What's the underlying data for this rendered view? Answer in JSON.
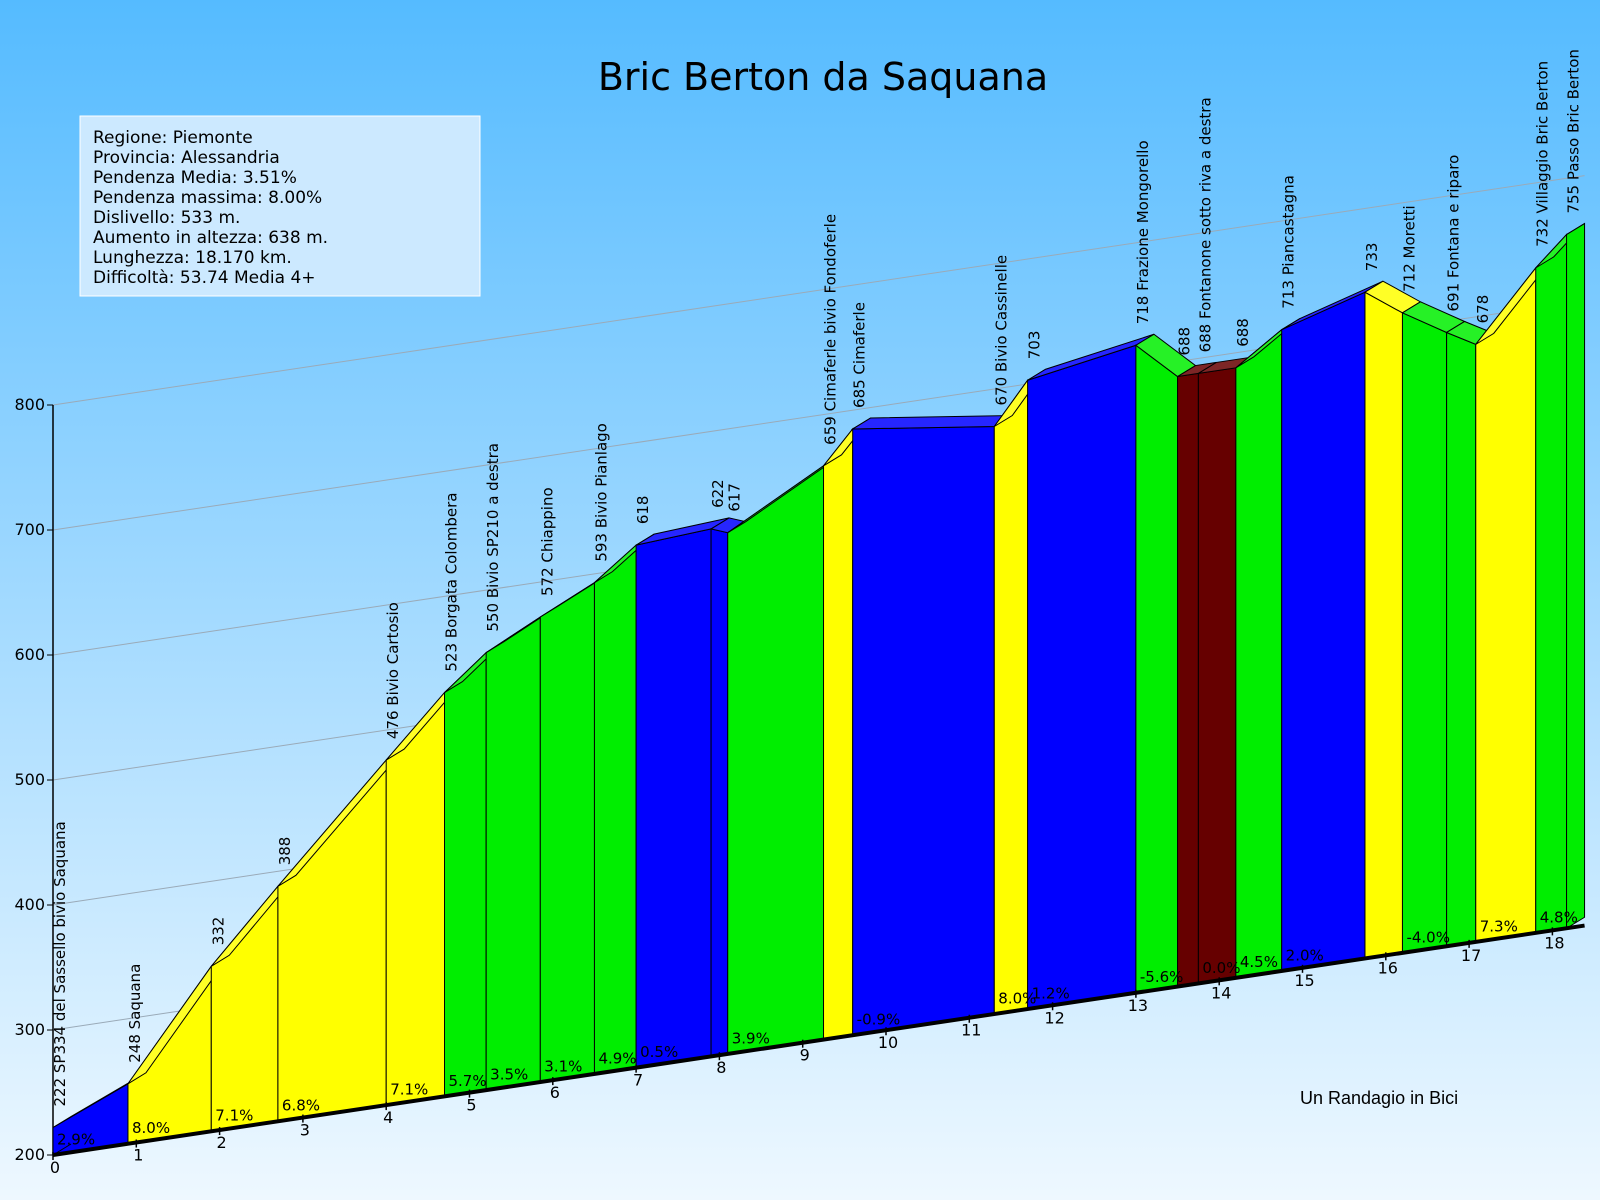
{
  "chart_data": {
    "type": "area",
    "title": "Bric Berton da Saquana",
    "info": [
      "Regione: Piemonte",
      "Provincia: Alessandria",
      "Pendenza Media: 3.51%",
      "Pendenza massima: 8.00%",
      "Dislivello:   533 m.",
      "Aumento in altezza:   638 m.",
      "Lunghezza:  18.170 km.",
      "Difficoltà: 53.74 Media 4+"
    ],
    "credit": "Un Randagio in Bici",
    "y_ticks": [
      "200",
      "300",
      "400",
      "500",
      "600",
      "700",
      "800"
    ],
    "ylim": [
      200,
      800
    ],
    "x_ticks": [
      "0",
      "1",
      "2",
      "3",
      "4",
      "5",
      "6",
      "7",
      "8",
      "9",
      "10",
      "11",
      "12",
      "13",
      "14",
      "15",
      "16",
      "17",
      "18"
    ],
    "xlim": [
      0,
      18.17
    ],
    "colors": {
      "easy": "#0000ff",
      "moderate": "#00ee00",
      "hard": "#ffff00",
      "descent": "#660000",
      "sky_top": "#55bbff",
      "sky_bottom": "#e8f6ff"
    },
    "points": [
      {
        "km": 0.0,
        "alt": 222,
        "label": "222 SP334 del Sassello bivio Saquana"
      },
      {
        "km": 0.9,
        "alt": 248,
        "label": "248 Saquana"
      },
      {
        "km": 1.9,
        "alt": 332,
        "label": "332"
      },
      {
        "km": 2.7,
        "alt": 388,
        "label": "388"
      },
      {
        "km": 4.0,
        "alt": 476,
        "label": "476 Bivio Cartosio"
      },
      {
        "km": 4.7,
        "alt": 523,
        "label": "523 Borgata Colombera"
      },
      {
        "km": 5.2,
        "alt": 550,
        "label": "550 Bivio SP210 a destra"
      },
      {
        "km": 5.85,
        "alt": 572,
        "label": "572 Chiappino"
      },
      {
        "km": 6.5,
        "alt": 593,
        "label": "593 Bivio Pianlago"
      },
      {
        "km": 7.0,
        "alt": 618,
        "label": "618"
      },
      {
        "km": 7.9,
        "alt": 622,
        "label": "622"
      },
      {
        "km": 8.1,
        "alt": 617,
        "label": "617"
      },
      {
        "km": 9.25,
        "alt": 659,
        "label": "659 Cimaferle bivio Fondoferle"
      },
      {
        "km": 9.6,
        "alt": 685,
        "label": "685 Cimaferle"
      },
      {
        "km": 11.3,
        "alt": 670,
        "label": "670 Bivio Cassinelle"
      },
      {
        "km": 11.7,
        "alt": 703,
        "label": "703"
      },
      {
        "km": 13.0,
        "alt": 718,
        "label": "718 Frazione Mongorello"
      },
      {
        "km": 13.5,
        "alt": 688,
        "label": "688"
      },
      {
        "km": 13.75,
        "alt": 688,
        "label": "688 Fontanone sotto riva a destra"
      },
      {
        "km": 14.2,
        "alt": 688,
        "label": "688"
      },
      {
        "km": 14.75,
        "alt": 713,
        "label": "713 Piancastagna"
      },
      {
        "km": 15.75,
        "alt": 733,
        "label": "733"
      },
      {
        "km": 16.2,
        "alt": 712,
        "label": "712 Moretti"
      },
      {
        "km": 16.73,
        "alt": 691,
        "label": "691 Fontana e riparo"
      },
      {
        "km": 17.08,
        "alt": 678,
        "label": "678"
      },
      {
        "km": 17.8,
        "alt": 732,
        "label": "732 Villaggio Bric Berton"
      },
      {
        "km": 18.17,
        "alt": 755,
        "label": "755 Passo Bric Berton"
      }
    ],
    "segments": [
      {
        "grade": "2.9%",
        "color": "easy"
      },
      {
        "grade": "8.0%",
        "color": "hard"
      },
      {
        "grade": "7.1%",
        "color": "hard"
      },
      {
        "grade": "6.8%",
        "color": "hard"
      },
      {
        "grade": "7.1%",
        "color": "hard"
      },
      {
        "grade": "5.7%",
        "color": "moderate"
      },
      {
        "grade": "3.5%",
        "color": "moderate"
      },
      {
        "grade": "3.1%",
        "color": "moderate"
      },
      {
        "grade": "4.9%",
        "color": "moderate"
      },
      {
        "grade": "0.5%",
        "color": "easy"
      },
      {
        "grade": "",
        "color": "easy"
      },
      {
        "grade": "3.9%",
        "color": "moderate"
      },
      {
        "grade": "",
        "color": "hard"
      },
      {
        "grade": "-0.9%",
        "color": "easy"
      },
      {
        "grade": "8.0%",
        "color": "hard"
      },
      {
        "grade": "1.2%",
        "color": "easy"
      },
      {
        "grade": "-5.6%",
        "color": "moderate"
      },
      {
        "grade": "",
        "color": "descent"
      },
      {
        "grade": "0.0%",
        "color": "descent"
      },
      {
        "grade": "4.5%",
        "color": "moderate"
      },
      {
        "grade": "2.0%",
        "color": "easy"
      },
      {
        "grade": "",
        "color": "hard"
      },
      {
        "grade": "-4.0%",
        "color": "moderate"
      },
      {
        "grade": "",
        "color": "moderate"
      },
      {
        "grade": "7.3%",
        "color": "hard"
      },
      {
        "grade": "4.8%",
        "color": "moderate"
      }
    ]
  }
}
